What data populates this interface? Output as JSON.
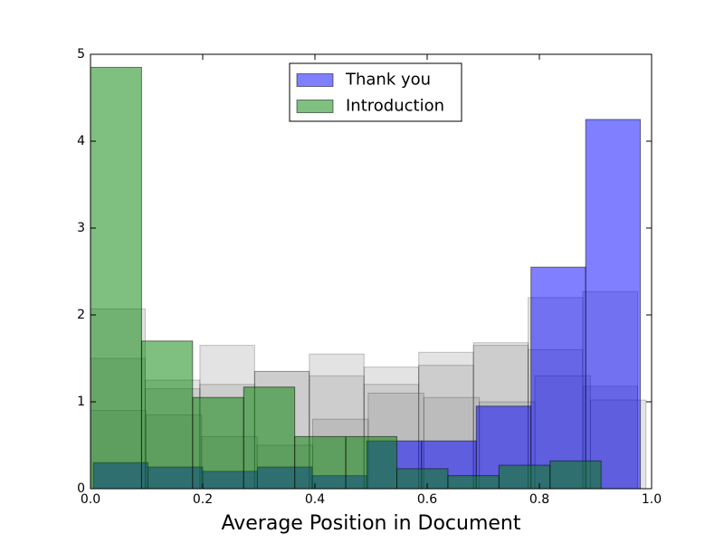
{
  "chart_data": {
    "type": "histogram",
    "xlabel": "Average Position in Document",
    "xlim": [
      0,
      1
    ],
    "ylim": [
      0,
      5
    ],
    "xticks": [
      {
        "value": 0,
        "label": "0.0"
      },
      {
        "value": 0.2,
        "label": "0.2"
      },
      {
        "value": 0.4,
        "label": "0.4"
      },
      {
        "value": 0.6,
        "label": "0.6"
      },
      {
        "value": 0.8,
        "label": "0.8"
      },
      {
        "value": 1,
        "label": "1.0"
      }
    ],
    "yticks": [
      0,
      1,
      2,
      3,
      4,
      5
    ],
    "legend": "upper center",
    "series": [
      {
        "color": "#808080",
        "alpha": 0.22,
        "bins": [
          0.0,
          0.0975,
          0.195,
          0.2925,
          0.39,
          0.4875,
          0.585,
          0.6825,
          0.78,
          0.8775,
          0.975
        ],
        "values": [
          2.07,
          1.25,
          1.65,
          1.35,
          1.3,
          1.4,
          1.57,
          1.68,
          2.2,
          1.18
        ]
      },
      {
        "color": "#808080",
        "alpha": 0.22,
        "bins": [
          0.0,
          0.0975,
          0.195,
          0.2925,
          0.39,
          0.4875,
          0.585,
          0.6825,
          0.78,
          0.8775,
          0.975
        ],
        "values": [
          1.5,
          1.15,
          1.2,
          1.35,
          1.55,
          1.2,
          1.42,
          1.65,
          1.6,
          2.27
        ]
      },
      {
        "color": "#808080",
        "alpha": 0.22,
        "bins": [
          0.0,
          0.099,
          0.198,
          0.297,
          0.396,
          0.495,
          0.594,
          0.693,
          0.792,
          0.891,
          0.99
        ],
        "values": [
          0.9,
          0.85,
          0.6,
          0.5,
          0.8,
          1.1,
          1.05,
          1.0,
          1.3,
          1.02
        ]
      },
      {
        "name": "Thank you",
        "color": "#0000ff",
        "alpha": 0.5,
        "bins": [
          0.005,
          0.1025,
          0.2,
          0.2975,
          0.395,
          0.4925,
          0.59,
          0.6875,
          0.785,
          0.8825,
          0.98
        ],
        "values": [
          0.3,
          0.25,
          0.2,
          0.25,
          0.15,
          0.55,
          0.55,
          0.95,
          2.55,
          4.25
        ]
      },
      {
        "name": "Introduction",
        "color": "#008000",
        "alpha": 0.5,
        "bins": [
          0.0,
          0.091,
          0.182,
          0.273,
          0.364,
          0.455,
          0.546,
          0.637,
          0.728,
          0.819,
          0.91
        ],
        "values": [
          4.85,
          1.7,
          1.05,
          1.17,
          0.6,
          0.6,
          0.23,
          0.15,
          0.27,
          0.32
        ]
      }
    ]
  }
}
